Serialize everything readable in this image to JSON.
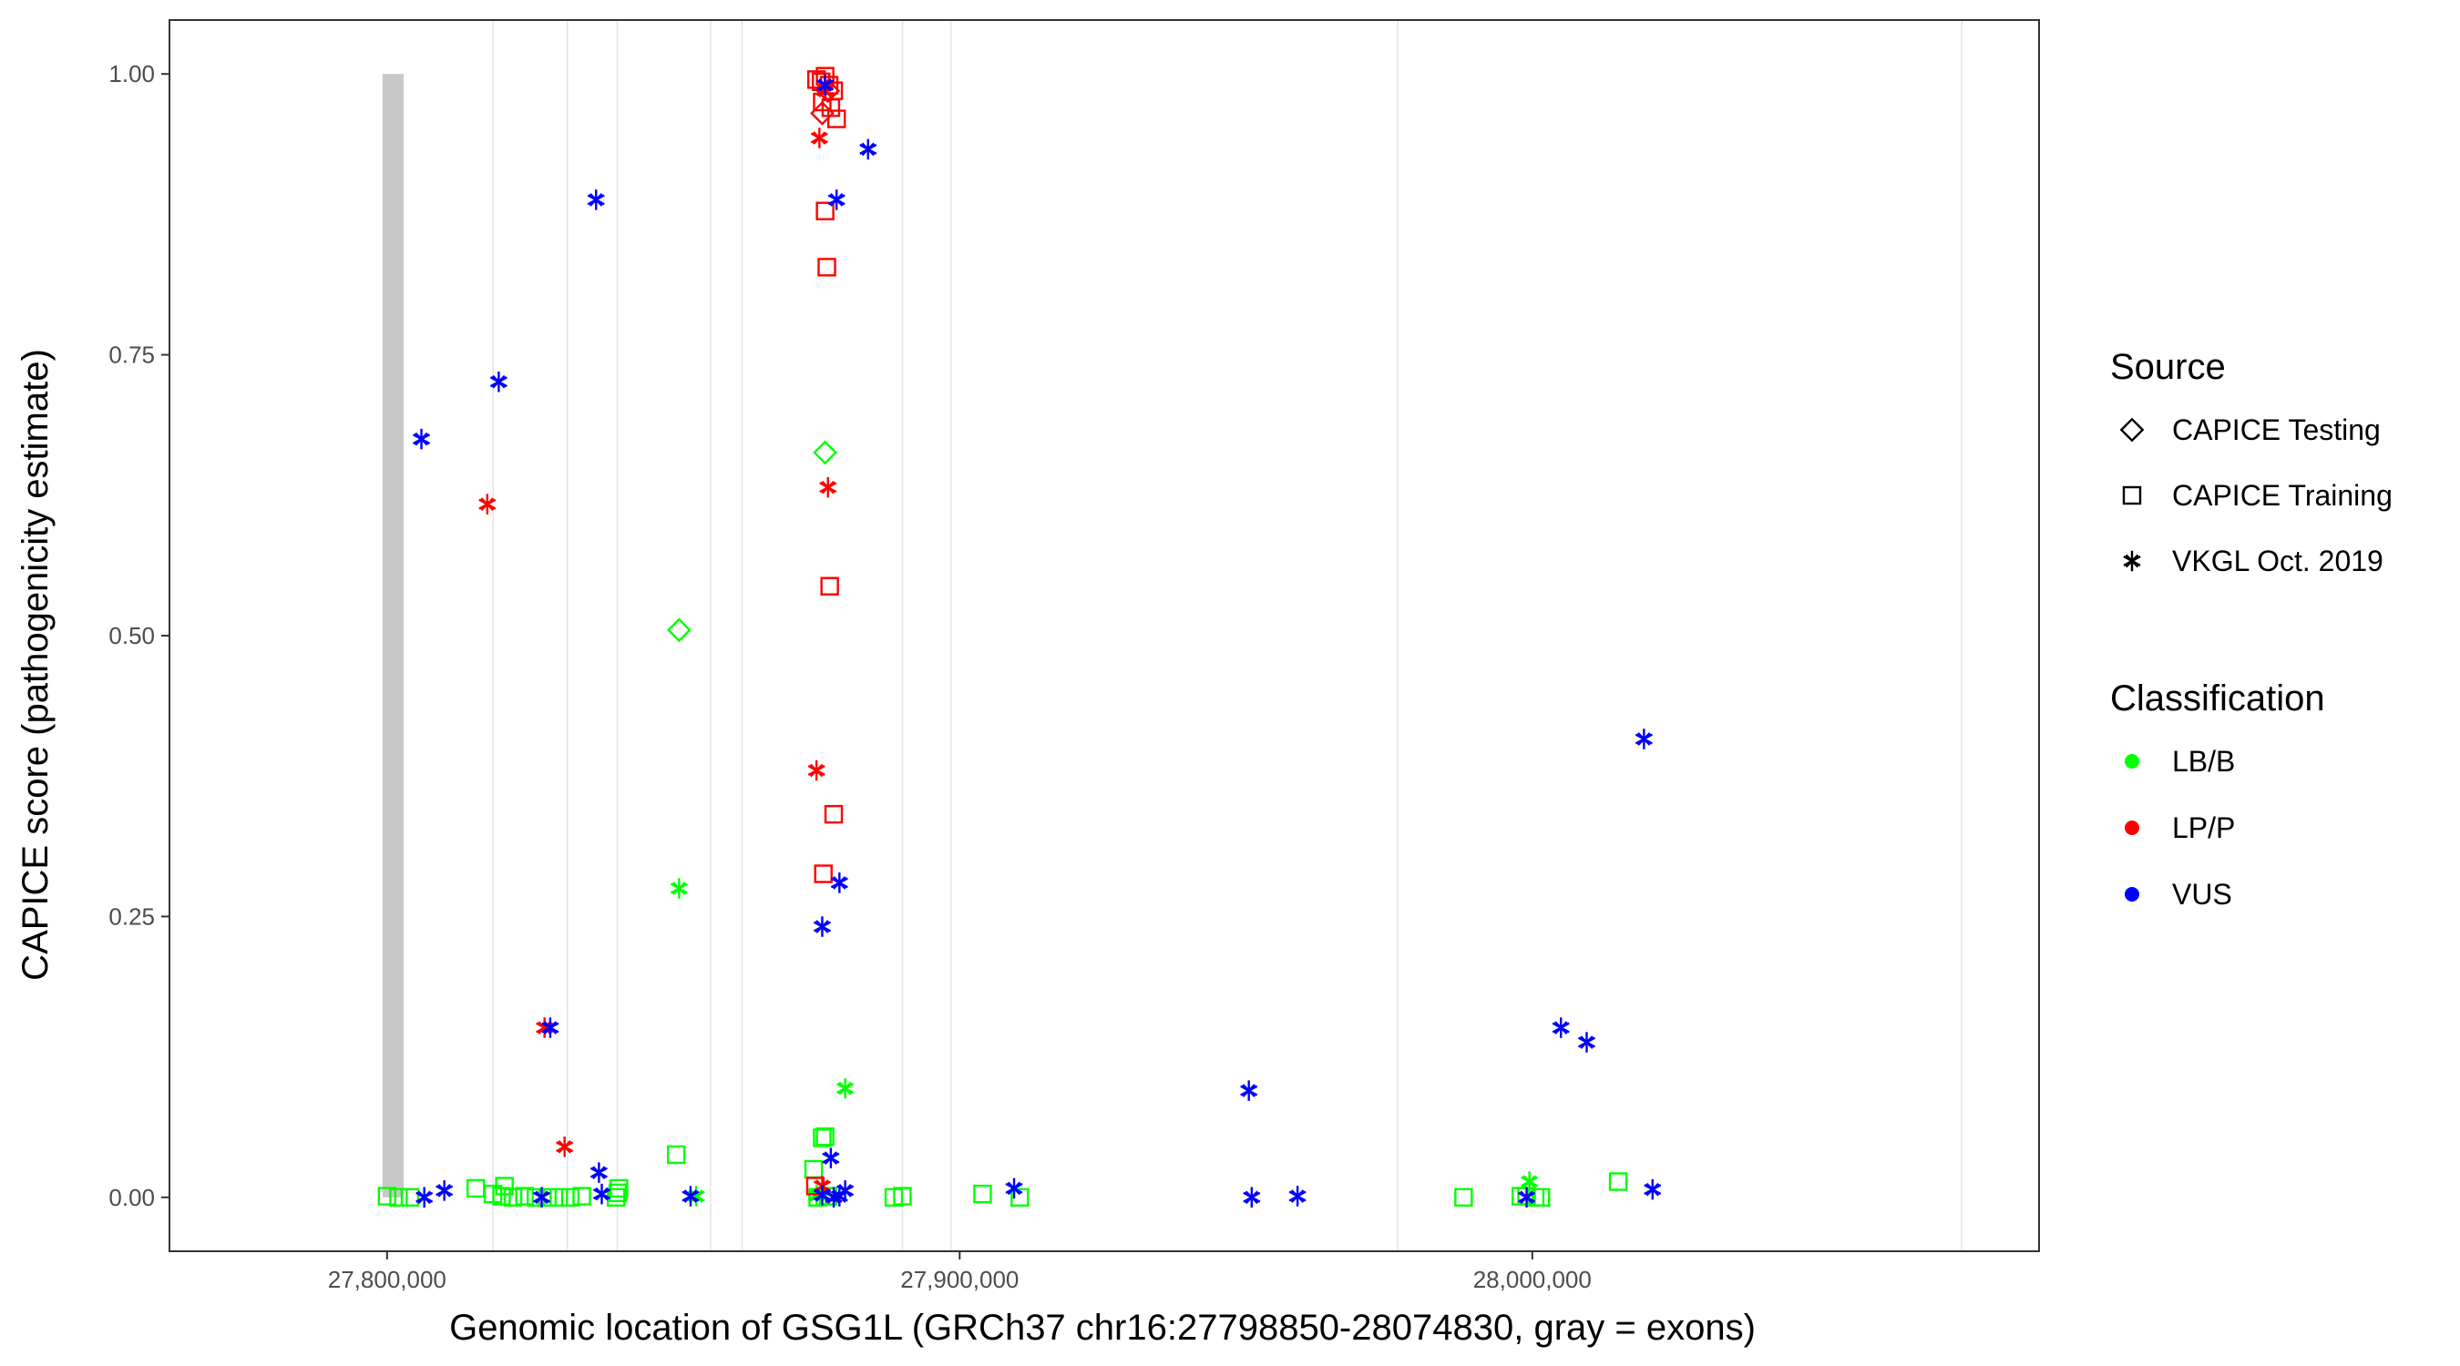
{
  "chart_data": {
    "type": "scatter",
    "title": "",
    "xlabel": "Genomic location of GSG1L (GRCh37 chr16:27798850-28074830, gray = exons)",
    "ylabel": "CAPICE score (pathogenicity estimate)",
    "xlim": [
      27762000,
      28088500
    ],
    "ylim": [
      -0.048,
      1.048
    ],
    "x_ticks": [
      27800000,
      27900000,
      28000000
    ],
    "x_tick_labels": [
      "27,800,000",
      "27,900,000",
      "28,000,000"
    ],
    "y_ticks": [
      0,
      0.25,
      0.5,
      0.75,
      1
    ],
    "y_tick_labels": [
      "0.00",
      "0.25",
      "0.50",
      "0.75",
      "1.00"
    ],
    "grid": false,
    "exons": [
      {
        "start": 27799200,
        "end": 27802900,
        "color": "#c8c8c8"
      }
    ],
    "intron_lines": [
      27818500,
      27831500,
      27840200,
      27856500,
      27862000,
      27890000,
      27898500,
      27976500,
      28075000
    ],
    "legend_source": {
      "title": "Source",
      "items": [
        {
          "label": "CAPICE Testing",
          "shape": "diamond"
        },
        {
          "label": "CAPICE Training",
          "shape": "square"
        },
        {
          "label": "VKGL Oct. 2019",
          "shape": "asterisk"
        }
      ]
    },
    "legend_classification": {
      "title": "Classification",
      "items": [
        {
          "label": "LB/B",
          "color": "#00ff00"
        },
        {
          "label": "LP/P",
          "color": "#ff0000"
        },
        {
          "label": "VUS",
          "color": "#0000ff"
        }
      ]
    },
    "series": [
      {
        "name": "LB/B",
        "source": "CAPICE Testing",
        "color": "#00ff00",
        "shape": "diamond",
        "x": [
          27851000,
          27876500
        ],
        "y": [
          0.505,
          0.663
        ]
      },
      {
        "name": "LB/B",
        "source": "CAPICE Training",
        "color": "#00ff00",
        "shape": "square",
        "x": [
          27800000,
          27802000,
          27804000,
          27815500,
          27818500,
          27820000,
          27820500,
          27822000,
          27824000,
          27826000,
          27828000,
          27830000,
          27832000,
          27834000,
          27840000,
          27840300,
          27840500,
          27850500,
          27874500,
          27875200,
          27876000,
          27876500,
          27877000,
          27888500,
          27890000,
          27904000,
          27910500,
          27988000,
          27998000,
          27999000,
          28000500,
          28001500,
          28015000
        ],
        "y": [
          0.001,
          0.0,
          0.0,
          0.008,
          0.003,
          0.001,
          0.01,
          0.0,
          0.001,
          0.0,
          0.0,
          0.0,
          0.0,
          0.001,
          0.0,
          0.004,
          0.008,
          0.038,
          0.025,
          0.0,
          0.053,
          0.054,
          0.001,
          0.0,
          0.001,
          0.003,
          0.0,
          0.0,
          0.001,
          0.001,
          0.0,
          0.0,
          0.014
        ]
      },
      {
        "name": "LB/B",
        "source": "VKGL Oct. 2019",
        "color": "#00ff00",
        "shape": "asterisk",
        "x": [
          27851000,
          27854000,
          27880000,
          27875000,
          27999500
        ],
        "y": [
          0.275,
          0.001,
          0.097,
          0.002,
          0.014
        ]
      },
      {
        "name": "LP/P",
        "source": "CAPICE Training",
        "color": "#ff0000",
        "shape": "square",
        "x": [
          27875000,
          27875800,
          27876500,
          27877200,
          27878000,
          27876000,
          27877500,
          27878500,
          27876500,
          27876800,
          27877300,
          27878000,
          27876200,
          27874800
        ],
        "y": [
          0.995,
          0.993,
          0.998,
          0.99,
          0.985,
          0.975,
          0.97,
          0.96,
          0.878,
          0.828,
          0.544,
          0.341,
          0.288,
          0.01
        ]
      },
      {
        "name": "LP/P",
        "source": "CAPICE Testing",
        "color": "#ff0000",
        "shape": "diamond",
        "x": [
          27876000,
          27877000
        ],
        "y": [
          0.965,
          0.985
        ]
      },
      {
        "name": "LP/P",
        "source": "VKGL Oct. 2019",
        "color": "#ff0000",
        "shape": "asterisk",
        "x": [
          27817500,
          27827500,
          27831000,
          27875500,
          27875000,
          27877000,
          27876500,
          27876000
        ],
        "y": [
          0.617,
          0.151,
          0.045,
          0.943,
          0.38,
          0.632,
          0.985,
          0.01
        ]
      },
      {
        "name": "VUS",
        "source": "VKGL Oct. 2019",
        "color": "#0000ff",
        "shape": "asterisk",
        "x": [
          27806000,
          27819500,
          27836500,
          27828500,
          27837000,
          27837500,
          27806500,
          27810000,
          27827000,
          27853000,
          27876500,
          27878500,
          27884000,
          27879000,
          27876000,
          27877500,
          27876000,
          27878000,
          27879000,
          27880000,
          27909500,
          27950500,
          27951000,
          27959000,
          27999000,
          28005000,
          28009500,
          28019500,
          28021000
        ],
        "y": [
          0.675,
          0.726,
          0.888,
          0.151,
          0.022,
          0.003,
          0.0,
          0.006,
          0.0,
          0.001,
          0.99,
          0.888,
          0.933,
          0.28,
          0.241,
          0.035,
          0.002,
          0.0,
          0.001,
          0.006,
          0.008,
          0.095,
          0.0,
          0.001,
          0.0,
          0.151,
          0.138,
          0.408,
          0.007
        ]
      }
    ]
  }
}
